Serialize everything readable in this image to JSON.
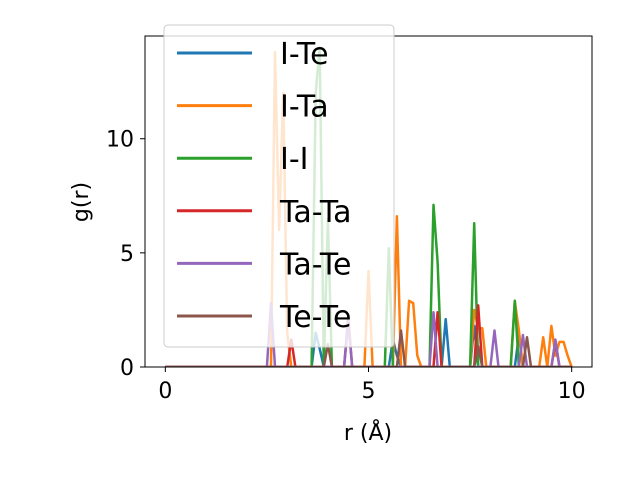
{
  "chart_data": {
    "type": "line",
    "xlabel": "r (Å)",
    "ylabel": "g(r)",
    "xlim": [
      -0.5,
      10.5
    ],
    "ylim": [
      0,
      14.5
    ],
    "xticks": [
      0,
      5,
      10
    ],
    "yticks": [
      0,
      5,
      10
    ],
    "grid": false,
    "legend_position": "upper-left",
    "series": [
      {
        "name": "I-Te",
        "color": "#1f77b4",
        "x": [
          0,
          3.6,
          3.7,
          3.8,
          3.9,
          5.5,
          5.6,
          5.7,
          5.8,
          6.8,
          6.9,
          7.0,
          7.5,
          7.6,
          7.7,
          8.6,
          8.7,
          8.8,
          10
        ],
        "y": [
          0,
          0,
          1.5,
          0.8,
          0,
          0,
          1.2,
          0.5,
          0,
          0,
          2.1,
          0,
          0,
          1.8,
          0,
          0,
          1.4,
          0,
          0
        ]
      },
      {
        "name": "I-Ta",
        "color": "#ff7f0e",
        "x": [
          0,
          2.6,
          2.7,
          2.8,
          2.9,
          3.0,
          3.1,
          4.9,
          5.0,
          5.1,
          5.6,
          5.7,
          5.8,
          5.9,
          6.0,
          6.1,
          6.2,
          6.3,
          7.5,
          7.6,
          7.7,
          7.8,
          7.9,
          8.5,
          8.6,
          8.7,
          8.8,
          9.2,
          9.3,
          9.4,
          9.5,
          9.6,
          9.7,
          9.8,
          9.9,
          10.0
        ],
        "y": [
          0,
          0,
          13.8,
          6.0,
          12.0,
          1.5,
          0,
          0,
          4.2,
          0,
          0,
          6.6,
          0,
          0,
          2.9,
          2.8,
          0.5,
          0,
          0,
          2.5,
          1.7,
          1.7,
          0,
          0,
          2.9,
          1.6,
          0,
          0,
          1.3,
          0,
          1.8,
          0.5,
          1.1,
          1.1,
          0.5,
          0
        ]
      },
      {
        "name": "I-I",
        "color": "#2ca02c",
        "x": [
          0,
          3.6,
          3.7,
          3.8,
          3.9,
          4.0,
          4.1,
          5.4,
          5.5,
          5.6,
          6.5,
          6.6,
          6.7,
          6.8,
          7.5,
          7.6,
          7.7,
          8.5,
          8.6,
          8.7,
          10
        ],
        "y": [
          0,
          0,
          12.0,
          14.0,
          0,
          6.5,
          0,
          0,
          5.2,
          0,
          0,
          7.1,
          4.6,
          0,
          0,
          6.3,
          0,
          0,
          2.9,
          0,
          0
        ]
      },
      {
        "name": "Ta-Ta",
        "color": "#d62728",
        "x": [
          0,
          3.0,
          3.1,
          3.2,
          4.4,
          4.5,
          4.6,
          6.6,
          6.7,
          6.8,
          7.6,
          7.7,
          7.8,
          9.5,
          9.6,
          9.7,
          10
        ],
        "y": [
          0,
          0,
          1.2,
          0,
          0,
          2.2,
          0,
          0,
          2.4,
          0,
          0,
          2.7,
          0,
          0,
          1.1,
          0,
          0
        ]
      },
      {
        "name": "Ta-Te",
        "color": "#9467bd",
        "x": [
          0,
          2.5,
          2.6,
          2.7,
          4.4,
          4.5,
          4.6,
          6.5,
          6.6,
          6.7,
          8.0,
          8.1,
          8.2,
          8.7,
          8.8,
          8.9,
          9.5,
          9.6,
          9.7,
          10
        ],
        "y": [
          0,
          0,
          2.8,
          0,
          0,
          2.0,
          0,
          0,
          2.4,
          0,
          0,
          1.6,
          0,
          0,
          1.4,
          0,
          0,
          1.2,
          0,
          0
        ]
      },
      {
        "name": "Te-Te",
        "color": "#8c564b",
        "x": [
          0,
          3.9,
          4.0,
          4.1,
          5.7,
          5.8,
          5.9,
          7.6,
          7.7,
          7.8,
          8.8,
          8.9,
          9.0,
          10
        ],
        "y": [
          0,
          0,
          1.0,
          0,
          0,
          1.6,
          0,
          0,
          0.9,
          0,
          0,
          1.3,
          0,
          0
        ]
      }
    ]
  }
}
